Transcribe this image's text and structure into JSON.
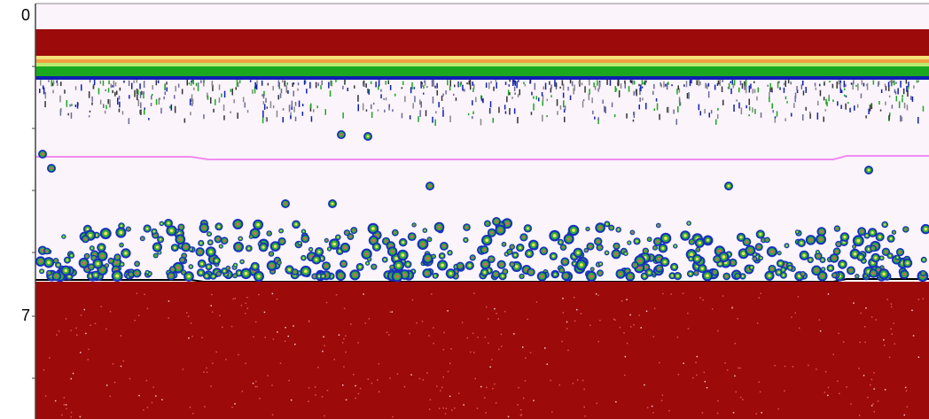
{
  "depth_labels": [
    "0",
    "7"
  ]
}
